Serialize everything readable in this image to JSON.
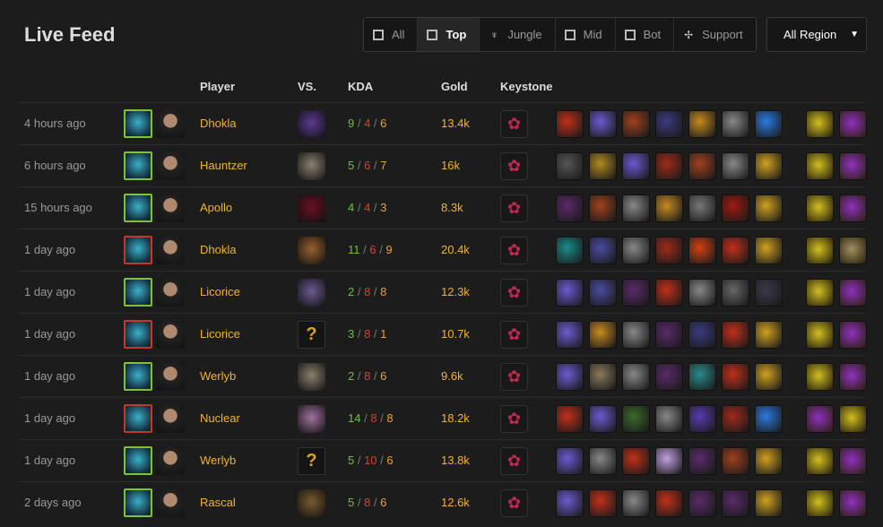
{
  "title": "Live Feed",
  "roles": [
    {
      "label": "All",
      "icon": "all-role-icon"
    },
    {
      "label": "Top",
      "icon": "top-role-icon",
      "active": true
    },
    {
      "label": "Jungle",
      "icon": "jungle-role-icon"
    },
    {
      "label": "Mid",
      "icon": "mid-role-icon"
    },
    {
      "label": "Bot",
      "icon": "bot-role-icon"
    },
    {
      "label": "Support",
      "icon": "support-role-icon"
    }
  ],
  "region": {
    "selected": "All Region"
  },
  "headers": {
    "player": "Player",
    "vs": "VS.",
    "kda": "KDA",
    "gold": "Gold",
    "keystone": "Keystone"
  },
  "colors": {
    "win": "#7ec13a",
    "loss": "#c0392b",
    "name": "#f0b429",
    "kills": "#6cc23a",
    "deaths": "#d9412f",
    "assists": "#f0a030"
  },
  "rows": [
    {
      "time": "4 hours ago",
      "result": "win",
      "player": "Dhokla",
      "vs": "#5a3a90",
      "k": "9",
      "d": "4",
      "a": "6",
      "gold": "13.4k",
      "items": [
        "#c0301a",
        "#6a5ad0",
        "#a0401f",
        "#3a3a80",
        "#c88a20",
        "#888888",
        "#2a7ae0"
      ],
      "trinkets": [
        "#d0c020",
        "#9030c0"
      ]
    },
    {
      "time": "6 hours ago",
      "result": "win",
      "player": "Hauntzer",
      "vs": "#8a8070",
      "k": "5",
      "d": "6",
      "a": "7",
      "gold": "16k",
      "items": [
        "#555555",
        "#b08a20",
        "#6a5ad0",
        "#a02a1a",
        "#a0401f",
        "#888888",
        "#d0a020"
      ],
      "trinkets": [
        "#d0c020",
        "#9030c0"
      ]
    },
    {
      "time": "15 hours ago",
      "result": "win",
      "player": "Apollo",
      "vs": "#6a1020",
      "k": "4",
      "d": "4",
      "a": "3",
      "gold": "8.3k",
      "items": [
        "#5a2a6a",
        "#a0401f",
        "#888888",
        "#c88a20",
        "#777777",
        "#a01a10",
        "#d0a020"
      ],
      "trinkets": [
        "#d0c020",
        "#9030c0"
      ]
    },
    {
      "time": "1 day ago",
      "result": "loss",
      "player": "Dhokla",
      "vs": "#9a6030",
      "k": "11",
      "d": "6",
      "a": "9",
      "gold": "20.4k",
      "items": [
        "#1a8a8a",
        "#4a4aa0",
        "#888888",
        "#a02a1a",
        "#d04010",
        "#c0301a",
        "#d0a020"
      ],
      "trinkets": [
        "#d0c020",
        "#a09060"
      ]
    },
    {
      "time": "1 day ago",
      "result": "win",
      "player": "Licorice",
      "vs": "#6a5a90",
      "k": "2",
      "d": "8",
      "a": "8",
      "gold": "12.3k",
      "items": [
        "#6a5ad0",
        "#4a4aa0",
        "#5a2a6a",
        "#c0301a",
        "#888888",
        "#666666",
        "#3a3a4a"
      ],
      "trinkets": [
        "#d0c020",
        "#9030c0"
      ]
    },
    {
      "time": "1 day ago",
      "result": "loss",
      "player": "Licorice",
      "vs": "unknown",
      "k": "3",
      "d": "8",
      "a": "1",
      "gold": "10.7k",
      "items": [
        "#6a5ad0",
        "#c88a20",
        "#888888",
        "#5a2a6a",
        "#3a3a80",
        "#c0301a",
        "#d0a020"
      ],
      "trinkets": [
        "#d0c020",
        "#9030c0"
      ]
    },
    {
      "time": "1 day ago",
      "result": "win",
      "player": "Werlyb",
      "vs": "#8a8070",
      "k": "2",
      "d": "8",
      "a": "6",
      "gold": "9.6k",
      "items": [
        "#6a5ad0",
        "#8a7a5a",
        "#888888",
        "#5a2a6a",
        "#2a8a8a",
        "#c0301a",
        "#d0a020"
      ],
      "trinkets": [
        "#d0c020",
        "#9030c0"
      ]
    },
    {
      "time": "1 day ago",
      "result": "loss",
      "player": "Nuclear",
      "vs": "#a070a0",
      "k": "14",
      "d": "8",
      "a": "8",
      "gold": "18.2k",
      "items": [
        "#c0301a",
        "#6a5ad0",
        "#3a6a2a",
        "#888888",
        "#5a3ab0",
        "#a02a1a",
        "#2a7ae0"
      ],
      "trinkets": [
        "#9030c0",
        "#d0c020"
      ]
    },
    {
      "time": "1 day ago",
      "result": "win",
      "player": "Werlyb",
      "vs": "unknown",
      "k": "5",
      "d": "10",
      "a": "6",
      "gold": "13.8k",
      "items": [
        "#6a5ad0",
        "#888888",
        "#c0301a",
        "#c0a0e0",
        "#5a2a6a",
        "#a0401f",
        "#d0a020"
      ],
      "trinkets": [
        "#d0c020",
        "#9030c0"
      ]
    },
    {
      "time": "2 days ago",
      "result": "win",
      "player": "Rascal",
      "vs": "#7a5a30",
      "k": "5",
      "d": "8",
      "a": "6",
      "gold": "12.6k",
      "items": [
        "#6a5ad0",
        "#c0301a",
        "#888888",
        "#c0301a",
        "#5a2a6a",
        "#5a2a6a",
        "#d0a020"
      ],
      "trinkets": [
        "#d0c020",
        "#9030c0"
      ]
    }
  ]
}
